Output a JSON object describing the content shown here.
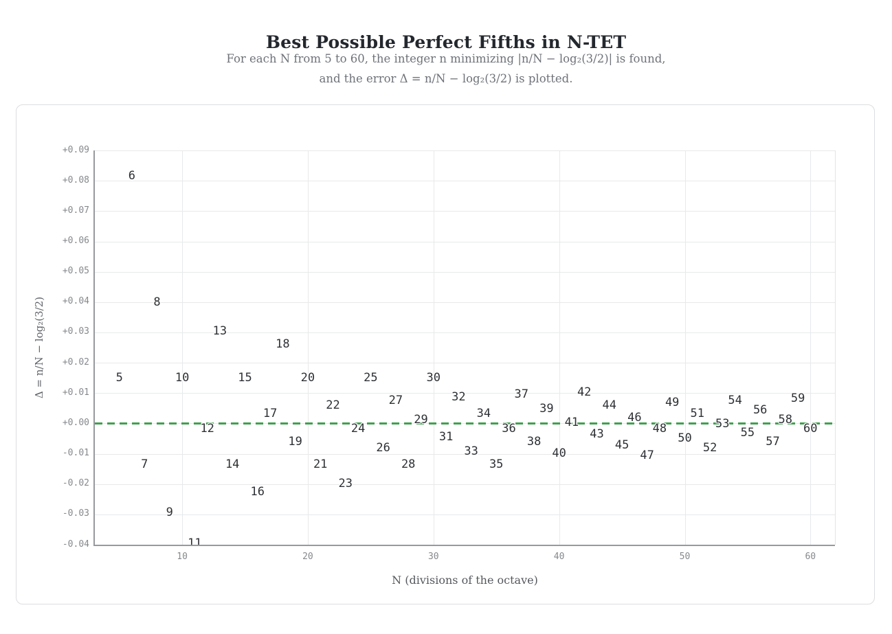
{
  "header": {
    "title": "Best Possible Perfect Fifths in N-TET",
    "subtitle_lines": [
      "For each N from 5 to 60, the integer n minimizing |n/N − log₂(3/2)| is found,",
      "and the error Δ = n/N − log₂(3/2) is plotted."
    ]
  },
  "colors": {
    "accent_green": "#3fa04e",
    "data_label": "#2d3034",
    "tick_label": "#85888c",
    "gridline": "#e8e9ea",
    "spine": "#96999d",
    "card_border": "#dcdde0",
    "title": "#23272e",
    "subtitle": "#6e7278"
  },
  "chart_data": {
    "type": "scatter",
    "marker_style": "text-label",
    "title": "Best Possible Perfect Fifths in N-TET",
    "xlabel": "N (divisions of the octave)",
    "ylabel": "Δ = n/N − log₂(3/2)",
    "xlim": [
      3.05,
      61.95
    ],
    "ylim": [
      -0.04,
      0.09
    ],
    "grid": true,
    "zero_line": {
      "y": 0.0,
      "style": "dashed",
      "color": "#3fa04e"
    },
    "x_ticks": [
      {
        "value": 10,
        "label": "10"
      },
      {
        "value": 20,
        "label": "20"
      },
      {
        "value": 30,
        "label": "30"
      },
      {
        "value": 40,
        "label": "40"
      },
      {
        "value": 50,
        "label": "50"
      },
      {
        "value": 60,
        "label": "60"
      }
    ],
    "y_ticks": [
      {
        "value": 0.09,
        "label": "+0.09"
      },
      {
        "value": 0.08,
        "label": "+0.08"
      },
      {
        "value": 0.07,
        "label": "+0.07"
      },
      {
        "value": 0.06,
        "label": "+0.06"
      },
      {
        "value": 0.05,
        "label": "+0.05"
      },
      {
        "value": 0.04,
        "label": "+0.04"
      },
      {
        "value": 0.03,
        "label": "+0.03"
      },
      {
        "value": 0.02,
        "label": "+0.02"
      },
      {
        "value": 0.01,
        "label": "+0.01"
      },
      {
        "value": 0.0,
        "label": "+0.00"
      },
      {
        "value": -0.01,
        "label": "-0.01"
      },
      {
        "value": -0.02,
        "label": "-0.02"
      },
      {
        "value": -0.03,
        "label": "-0.03"
      },
      {
        "value": -0.04,
        "label": "-0.04"
      }
    ],
    "points": [
      {
        "x": 5,
        "y": 0.01504,
        "label": "5"
      },
      {
        "x": 6,
        "y": 0.0817,
        "label": "6"
      },
      {
        "x": 7,
        "y": -0.01353,
        "label": "7"
      },
      {
        "x": 8,
        "y": 0.04004,
        "label": "8"
      },
      {
        "x": 9,
        "y": -0.02941,
        "label": "9"
      },
      {
        "x": 10,
        "y": 0.01504,
        "label": "10"
      },
      {
        "x": 11,
        "y": -0.03951,
        "label": "11"
      },
      {
        "x": 12,
        "y": -0.00163,
        "label": "12"
      },
      {
        "x": 13,
        "y": 0.03042,
        "label": "13"
      },
      {
        "x": 14,
        "y": -0.01353,
        "label": "14"
      },
      {
        "x": 15,
        "y": 0.01504,
        "label": "15"
      },
      {
        "x": 16,
        "y": -0.02246,
        "label": "16"
      },
      {
        "x": 17,
        "y": 0.00327,
        "label": "17"
      },
      {
        "x": 18,
        "y": 0.02615,
        "label": "18"
      },
      {
        "x": 19,
        "y": -0.00602,
        "label": "19"
      },
      {
        "x": 20,
        "y": 0.01504,
        "label": "20"
      },
      {
        "x": 21,
        "y": -0.01353,
        "label": "21"
      },
      {
        "x": 22,
        "y": 0.00595,
        "label": "22"
      },
      {
        "x": 23,
        "y": -0.01975,
        "label": "23"
      },
      {
        "x": 24,
        "y": -0.00163,
        "label": "24"
      },
      {
        "x": 25,
        "y": 0.01504,
        "label": "25"
      },
      {
        "x": 26,
        "y": -0.00804,
        "label": "26"
      },
      {
        "x": 27,
        "y": 0.00763,
        "label": "27"
      },
      {
        "x": 28,
        "y": -0.01353,
        "label": "28"
      },
      {
        "x": 29,
        "y": 0.00124,
        "label": "29"
      },
      {
        "x": 30,
        "y": 0.01504,
        "label": "30"
      },
      {
        "x": 31,
        "y": -0.00432,
        "label": "31"
      },
      {
        "x": 32,
        "y": 0.00879,
        "label": "32"
      },
      {
        "x": 33,
        "y": -0.0092,
        "label": "33"
      },
      {
        "x": 34,
        "y": 0.00327,
        "label": "34"
      },
      {
        "x": 35,
        "y": -0.01353,
        "label": "35"
      },
      {
        "x": 36,
        "y": -0.00163,
        "label": "36"
      },
      {
        "x": 37,
        "y": 0.00963,
        "label": "37"
      },
      {
        "x": 38,
        "y": -0.00602,
        "label": "38"
      },
      {
        "x": 39,
        "y": 0.00478,
        "label": "39"
      },
      {
        "x": 40,
        "y": -0.00996,
        "label": "40"
      },
      {
        "x": 41,
        "y": 0.0004,
        "label": "41"
      },
      {
        "x": 42,
        "y": 0.01028,
        "label": "42"
      },
      {
        "x": 43,
        "y": -0.00357,
        "label": "43"
      },
      {
        "x": 44,
        "y": 0.00595,
        "label": "44"
      },
      {
        "x": 45,
        "y": -0.00718,
        "label": "45"
      },
      {
        "x": 46,
        "y": 0.00199,
        "label": "46"
      },
      {
        "x": 47,
        "y": -0.01049,
        "label": "47"
      },
      {
        "x": 48,
        "y": -0.00163,
        "label": "48"
      },
      {
        "x": 49,
        "y": 0.00687,
        "label": "49"
      },
      {
        "x": 50,
        "y": -0.00496,
        "label": "50"
      },
      {
        "x": 51,
        "y": 0.00327,
        "label": "51"
      },
      {
        "x": 52,
        "y": -0.00804,
        "label": "52"
      },
      {
        "x": 53,
        "y": -6e-05,
        "label": "53"
      },
      {
        "x": 54,
        "y": 0.00763,
        "label": "54"
      },
      {
        "x": 55,
        "y": -0.00314,
        "label": "55"
      },
      {
        "x": 56,
        "y": 0.00432,
        "label": "56"
      },
      {
        "x": 57,
        "y": -0.00602,
        "label": "57"
      },
      {
        "x": 58,
        "y": 0.00124,
        "label": "58"
      },
      {
        "x": 59,
        "y": 0.00826,
        "label": "59"
      },
      {
        "x": 60,
        "y": -0.00163,
        "label": "60"
      }
    ]
  }
}
